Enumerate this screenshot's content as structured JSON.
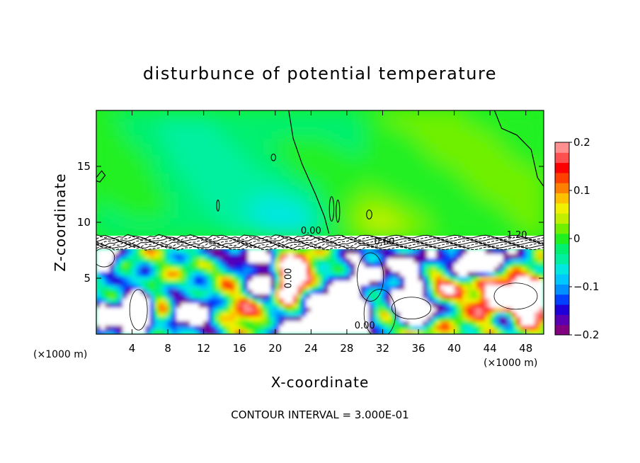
{
  "chart_data": {
    "type": "heatmap",
    "title": "disturbunce of potential temperature",
    "xlabel": "X-coordinate",
    "ylabel": "Z-coordinate",
    "x_unit": "(×1000 m)",
    "y_unit": "(×1000 m)",
    "xlim": [
      0,
      50
    ],
    "ylim": [
      0,
      20
    ],
    "x_ticks": [
      4,
      8,
      12,
      16,
      20,
      24,
      28,
      32,
      36,
      40,
      44,
      48
    ],
    "y_ticks": [
      5,
      10,
      15
    ],
    "colorbar": {
      "range": [
        -0.2,
        0.2
      ],
      "tick_values": [
        0.2,
        0.1,
        0,
        -0.1,
        -0.2
      ],
      "tick_labels": [
        "0.2",
        "0.1",
        "0",
        "−0.1",
        "−0.2"
      ],
      "colors": [
        "#800080",
        "#5a00b4",
        "#2000d8",
        "#0040ff",
        "#0090ff",
        "#00c8ff",
        "#00e8e0",
        "#00f0a0",
        "#00f070",
        "#20f020",
        "#70f000",
        "#c0f000",
        "#f0f000",
        "#ffc000",
        "#ff8000",
        "#ff4000",
        "#ff0000",
        "#ff5050",
        "#ff9090"
      ]
    },
    "contour_labels": [
      {
        "text": "0.00",
        "x": 24.0,
        "y": 9.0
      },
      {
        "text": "0.60",
        "x": 32.2,
        "y": 8.0
      },
      {
        "text": "1.20",
        "x": 47.0,
        "y": 8.6
      },
      {
        "text": "0.00",
        "x": 21.8,
        "y": 5.0
      },
      {
        "text": "0.00",
        "x": 30.0,
        "y": 0.5
      }
    ],
    "contour_interval_text": "CONTOUR INTERVAL = 3.000E-01",
    "regions": {
      "upper_layer_value_range": [
        -0.06,
        0.05
      ],
      "inversion_layer_height": [
        7.6,
        8.8
      ],
      "lower_layer_value_range": [
        -0.2,
        0.2
      ]
    }
  }
}
